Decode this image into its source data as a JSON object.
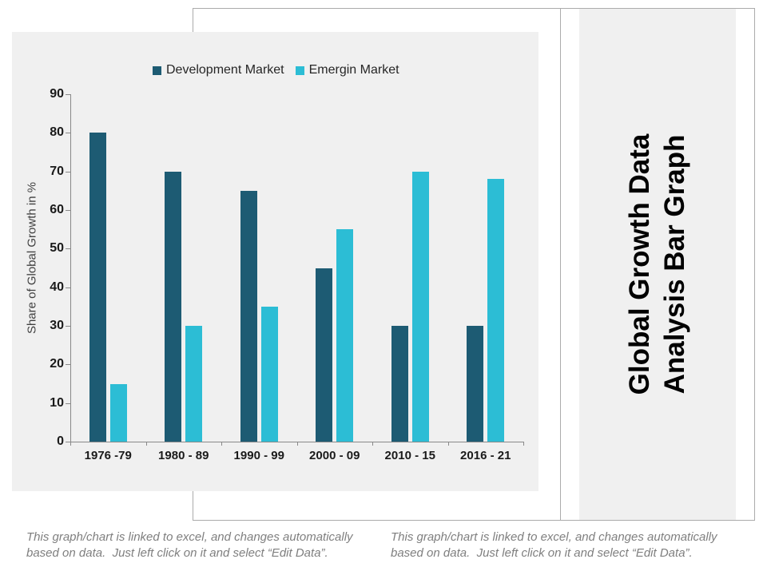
{
  "slide": {
    "title_line1": "Global Growth Data",
    "title_line2": "Analysis Bar Graph",
    "caption": {
      "line1": "This graph/chart is linked to excel, and changes automatically",
      "line2": "based on data.  Just left click on it and select “Edit Data”."
    }
  },
  "chart_data": {
    "type": "bar",
    "title": "",
    "categories": [
      "1976 -79",
      "1980 - 89",
      "1990 - 99",
      "2000 - 09",
      "2010 - 15",
      "2016 - 21"
    ],
    "series": [
      {
        "name": "Development Market",
        "color": "#1d5b73",
        "values": [
          80,
          70,
          65,
          45,
          30,
          30
        ]
      },
      {
        "name": "Emergin Market",
        "color": "#2cbdd5",
        "values": [
          15,
          30,
          35,
          55,
          70,
          68
        ]
      }
    ],
    "xlabel": "",
    "ylabel": "Share of Global Growth in %",
    "ylim": [
      0,
      90
    ],
    "ytick_step": 10,
    "grid": false,
    "legend_position": "top"
  }
}
